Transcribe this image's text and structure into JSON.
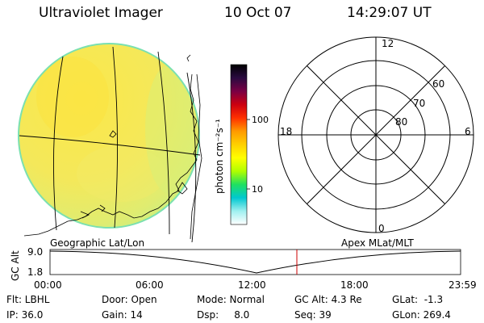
{
  "header": {
    "title": "Ultraviolet Imager",
    "date": "10 Oct 07",
    "time": "14:29:07 UT"
  },
  "colorbar": {
    "label": "photon cm⁻²s⁻¹",
    "ticks": [
      "100",
      "10"
    ],
    "stops": [
      "#000000",
      "#2a0a40",
      "#7a0044",
      "#cc0010",
      "#ff3000",
      "#ff9a00",
      "#ffd000",
      "#ffff00",
      "#b0ff00",
      "#20e060",
      "#00c8d0",
      "#a0f0f0",
      "#ffffff"
    ]
  },
  "image": {
    "fill_color": "#f8e650",
    "rim_color": "#7ae0b0"
  },
  "polar": {
    "mlt_labels": {
      "top": "12",
      "left": "18",
      "right": "6",
      "bottom": "0"
    },
    "lat_labels": [
      "60",
      "70",
      "80"
    ]
  },
  "timeline": {
    "left_label": "Geographic Lat/Lon",
    "right_label": "Apex MLat/MLT",
    "axis_label": "GC Alt",
    "ymax": "9.0",
    "ymin": "1.8",
    "xticks": [
      "00:00",
      "06:00",
      "12:00",
      "18:00",
      "23:59"
    ],
    "marker_color": "#cc0000"
  },
  "info": {
    "row1": {
      "flt": "Flt: LBHL",
      "door": "Door: Open",
      "mode": "Mode: Normal",
      "gc_alt": "GC Alt: 4.3 Re",
      "glat": "GLat:  -1.3"
    },
    "row2": {
      "ip": "IP: 36.0",
      "gain": "Gain: 14",
      "dsp": "Dsp:     8.0",
      "seq": "Seq: 39",
      "glon": "GLon: 269.4"
    }
  }
}
